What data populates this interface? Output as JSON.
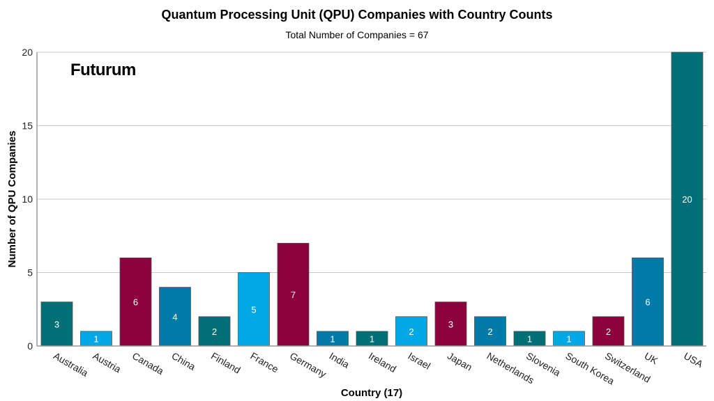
{
  "chart_data": {
    "type": "bar",
    "title": "Quantum Processing Unit (QPU) Companies with Country Counts",
    "subtitle": "Total Number of Companies = 67",
    "xlabel": "Country (17)",
    "ylabel": "Number of QPU Companies",
    "categories": [
      "Australia",
      "Austria",
      "Canada",
      "China",
      "Finland",
      "France",
      "Germany",
      "India",
      "Ireland",
      "Israel",
      "Japan",
      "Netherlands",
      "Slovenia",
      "South Korea",
      "Switzerland",
      "UK",
      "USA"
    ],
    "values": [
      3,
      1,
      6,
      4,
      2,
      5,
      7,
      1,
      1,
      2,
      3,
      2,
      1,
      1,
      2,
      6,
      20
    ],
    "ylim": [
      0,
      20
    ],
    "yticks": [
      0,
      5,
      10,
      15,
      20
    ],
    "grid": true,
    "legend": "none",
    "data_labels": true,
    "colors": [
      "#006F76",
      "#00A8E6",
      "#8C003C",
      "#007BA7"
    ],
    "watermark": "Futurum"
  }
}
